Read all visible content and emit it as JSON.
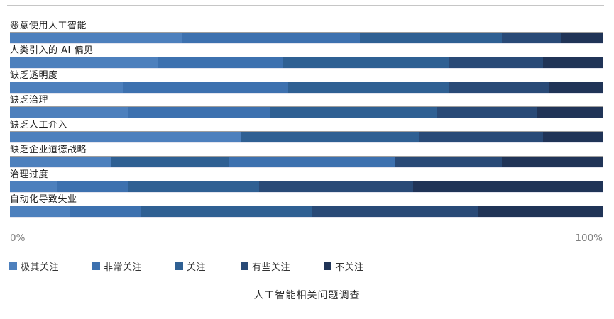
{
  "chart_data": {
    "type": "bar",
    "variant": "horizontal-stacked-percent",
    "title": "人工智能相关问题调查",
    "x_axis": {
      "min_label": "0%",
      "max_label": "100%",
      "range": [
        0,
        100
      ]
    },
    "legend_position": "bottom",
    "legend": [
      {
        "label": "极其关注",
        "color": "#4d80bd"
      },
      {
        "label": "非常关注",
        "color": "#3d71af"
      },
      {
        "label": "关注",
        "color": "#2f6093"
      },
      {
        "label": "有些关注",
        "color": "#294a77"
      },
      {
        "label": "不关注",
        "color": "#203457"
      }
    ],
    "rows": [
      {
        "label": "恶意使用人工智能",
        "segments": [
          {
            "legend": "极其关注",
            "value": 29
          },
          {
            "legend": "非常关注",
            "value": 30
          },
          {
            "legend": "关注",
            "value": 24
          },
          {
            "legend": "有些关注",
            "value": 10
          },
          {
            "legend": "不关注",
            "value": 7
          }
        ]
      },
      {
        "label": "人类引入的 AI 偏见",
        "segments": [
          {
            "legend": "极其关注",
            "value": 25
          },
          {
            "legend": "非常关注",
            "value": 21
          },
          {
            "legend": "关注",
            "value": 28
          },
          {
            "legend": "有些关注",
            "value": 16
          },
          {
            "legend": "不关注",
            "value": 10
          }
        ]
      },
      {
        "label": "缺乏透明度",
        "segments": [
          {
            "legend": "极其关注",
            "value": 19
          },
          {
            "legend": "非常关注",
            "value": 28
          },
          {
            "legend": "关注",
            "value": 27
          },
          {
            "legend": "有些关注",
            "value": 17
          },
          {
            "legend": "不关注",
            "value": 9
          }
        ]
      },
      {
        "label": "缺乏治理",
        "segments": [
          {
            "legend": "极其关注",
            "value": 20
          },
          {
            "legend": "非常关注",
            "value": 24
          },
          {
            "legend": "关注",
            "value": 28
          },
          {
            "legend": "有些关注",
            "value": 17
          },
          {
            "legend": "不关注",
            "value": 11
          }
        ]
      },
      {
        "label": "缺乏人工介入",
        "segments": [
          {
            "legend": "极其关注",
            "value": 39
          },
          {
            "legend": "非常关注",
            "value": 0
          },
          {
            "legend": "关注",
            "value": 30
          },
          {
            "legend": "有些关注",
            "value": 21
          },
          {
            "legend": "不关注",
            "value": 10
          }
        ]
      },
      {
        "label": "缺乏企业道德战略",
        "segments": [
          {
            "legend": "极其关注",
            "value": 17
          },
          {
            "legend": "关注",
            "value": 20
          },
          {
            "legend": "非常关注",
            "value": 28
          },
          {
            "legend": "有些关注",
            "value": 18
          },
          {
            "legend": "不关注",
            "value": 17
          }
        ]
      },
      {
        "label": "治理过度",
        "segments": [
          {
            "legend": "极其关注",
            "value": 8
          },
          {
            "legend": "非常关注",
            "value": 12
          },
          {
            "legend": "关注",
            "value": 22
          },
          {
            "legend": "有些关注",
            "value": 26
          },
          {
            "legend": "不关注",
            "value": 32
          }
        ]
      },
      {
        "label": "自动化导致失业",
        "segments": [
          {
            "legend": "极其关注",
            "value": 10
          },
          {
            "legend": "非常关注",
            "value": 12
          },
          {
            "legend": "关注",
            "value": 29
          },
          {
            "legend": "有些关注",
            "value": 28
          },
          {
            "legend": "不关注",
            "value": 21
          }
        ]
      }
    ]
  }
}
